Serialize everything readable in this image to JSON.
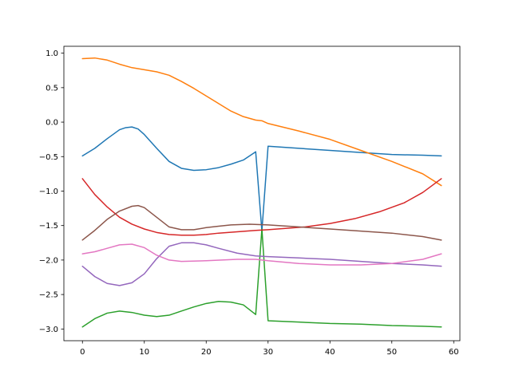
{
  "chart_data": {
    "type": "line",
    "title": "",
    "xlabel": "",
    "ylabel": "",
    "xlim": [
      -3,
      61
    ],
    "ylim": [
      -3.17,
      1.1
    ],
    "xticks": [
      0,
      10,
      20,
      30,
      40,
      50,
      60
    ],
    "yticks": [
      1.0,
      0.5,
      0.0,
      -0.5,
      -1.0,
      -1.5,
      -2.0,
      -2.5,
      -3.0
    ],
    "xtick_labels": [
      "0",
      "10",
      "20",
      "30",
      "40",
      "50",
      "60"
    ],
    "ytick_labels": [
      "1.0",
      "0.5",
      "0.0",
      "−0.5",
      "−1.0",
      "−1.5",
      "−2.0",
      "−2.5",
      "−3.0"
    ],
    "grid": false,
    "series": [
      {
        "color": "#1f77b4",
        "points": [
          [
            0,
            -0.49
          ],
          [
            2,
            -0.38
          ],
          [
            4,
            -0.24
          ],
          [
            6,
            -0.11
          ],
          [
            7,
            -0.08
          ],
          [
            8,
            -0.07
          ],
          [
            9,
            -0.1
          ],
          [
            10,
            -0.18
          ],
          [
            12,
            -0.38
          ],
          [
            14,
            -0.57
          ],
          [
            16,
            -0.67
          ],
          [
            18,
            -0.7
          ],
          [
            20,
            -0.69
          ],
          [
            22,
            -0.66
          ],
          [
            24,
            -0.61
          ],
          [
            26,
            -0.55
          ],
          [
            28,
            -0.43
          ],
          [
            29,
            -1.58
          ],
          [
            30,
            -0.35
          ],
          [
            35,
            -0.38
          ],
          [
            40,
            -0.41
          ],
          [
            45,
            -0.44
          ],
          [
            50,
            -0.47
          ],
          [
            55,
            -0.48
          ],
          [
            58,
            -0.49
          ]
        ]
      },
      {
        "color": "#ff7f0e",
        "points": [
          [
            0,
            0.92
          ],
          [
            2,
            0.93
          ],
          [
            4,
            0.9
          ],
          [
            6,
            0.84
          ],
          [
            8,
            0.79
          ],
          [
            10,
            0.76
          ],
          [
            12,
            0.73
          ],
          [
            14,
            0.68
          ],
          [
            16,
            0.59
          ],
          [
            18,
            0.49
          ],
          [
            20,
            0.38
          ],
          [
            22,
            0.27
          ],
          [
            24,
            0.16
          ],
          [
            26,
            0.08
          ],
          [
            28,
            0.03
          ],
          [
            29,
            0.02
          ],
          [
            30,
            -0.02
          ],
          [
            35,
            -0.13
          ],
          [
            40,
            -0.25
          ],
          [
            45,
            -0.41
          ],
          [
            50,
            -0.57
          ],
          [
            55,
            -0.75
          ],
          [
            58,
            -0.92
          ]
        ]
      },
      {
        "color": "#2ca02c",
        "points": [
          [
            0,
            -2.97
          ],
          [
            2,
            -2.85
          ],
          [
            4,
            -2.77
          ],
          [
            6,
            -2.74
          ],
          [
            8,
            -2.76
          ],
          [
            10,
            -2.8
          ],
          [
            12,
            -2.82
          ],
          [
            14,
            -2.8
          ],
          [
            16,
            -2.74
          ],
          [
            18,
            -2.68
          ],
          [
            20,
            -2.63
          ],
          [
            22,
            -2.6
          ],
          [
            24,
            -2.61
          ],
          [
            26,
            -2.65
          ],
          [
            28,
            -2.79
          ],
          [
            29,
            -1.55
          ],
          [
            30,
            -2.88
          ],
          [
            35,
            -2.9
          ],
          [
            40,
            -2.92
          ],
          [
            45,
            -2.93
          ],
          [
            50,
            -2.95
          ],
          [
            55,
            -2.96
          ],
          [
            58,
            -2.97
          ]
        ]
      },
      {
        "color": "#d62728",
        "points": [
          [
            0,
            -0.82
          ],
          [
            2,
            -1.05
          ],
          [
            4,
            -1.23
          ],
          [
            6,
            -1.38
          ],
          [
            8,
            -1.48
          ],
          [
            10,
            -1.55
          ],
          [
            12,
            -1.6
          ],
          [
            14,
            -1.63
          ],
          [
            16,
            -1.64
          ],
          [
            18,
            -1.64
          ],
          [
            20,
            -1.63
          ],
          [
            22,
            -1.61
          ],
          [
            25,
            -1.59
          ],
          [
            28,
            -1.57
          ],
          [
            30,
            -1.56
          ],
          [
            33,
            -1.54
          ],
          [
            36,
            -1.52
          ],
          [
            40,
            -1.47
          ],
          [
            44,
            -1.4
          ],
          [
            48,
            -1.3
          ],
          [
            52,
            -1.17
          ],
          [
            55,
            -1.02
          ],
          [
            58,
            -0.82
          ]
        ]
      },
      {
        "color": "#9467bd",
        "points": [
          [
            0,
            -2.09
          ],
          [
            2,
            -2.24
          ],
          [
            4,
            -2.34
          ],
          [
            6,
            -2.37
          ],
          [
            8,
            -2.33
          ],
          [
            10,
            -2.2
          ],
          [
            12,
            -1.98
          ],
          [
            14,
            -1.8
          ],
          [
            16,
            -1.75
          ],
          [
            18,
            -1.75
          ],
          [
            20,
            -1.78
          ],
          [
            22,
            -1.83
          ],
          [
            25,
            -1.9
          ],
          [
            28,
            -1.94
          ],
          [
            30,
            -1.95
          ],
          [
            35,
            -1.97
          ],
          [
            40,
            -1.99
          ],
          [
            45,
            -2.02
          ],
          [
            50,
            -2.05
          ],
          [
            55,
            -2.07
          ],
          [
            58,
            -2.09
          ]
        ]
      },
      {
        "color": "#8c564b",
        "points": [
          [
            0,
            -1.71
          ],
          [
            2,
            -1.57
          ],
          [
            4,
            -1.41
          ],
          [
            6,
            -1.29
          ],
          [
            8,
            -1.22
          ],
          [
            9,
            -1.21
          ],
          [
            10,
            -1.24
          ],
          [
            12,
            -1.38
          ],
          [
            14,
            -1.52
          ],
          [
            16,
            -1.56
          ],
          [
            18,
            -1.56
          ],
          [
            20,
            -1.53
          ],
          [
            22,
            -1.51
          ],
          [
            24,
            -1.49
          ],
          [
            27,
            -1.48
          ],
          [
            30,
            -1.49
          ],
          [
            35,
            -1.52
          ],
          [
            40,
            -1.55
          ],
          [
            45,
            -1.58
          ],
          [
            50,
            -1.61
          ],
          [
            55,
            -1.66
          ],
          [
            58,
            -1.71
          ]
        ]
      },
      {
        "color": "#e377c2",
        "points": [
          [
            0,
            -1.91
          ],
          [
            2,
            -1.88
          ],
          [
            4,
            -1.83
          ],
          [
            6,
            -1.78
          ],
          [
            8,
            -1.77
          ],
          [
            10,
            -1.82
          ],
          [
            12,
            -1.93
          ],
          [
            14,
            -2.0
          ],
          [
            16,
            -2.02
          ],
          [
            20,
            -2.01
          ],
          [
            25,
            -1.99
          ],
          [
            28,
            -1.99
          ],
          [
            30,
            -2.01
          ],
          [
            35,
            -2.05
          ],
          [
            40,
            -2.07
          ],
          [
            45,
            -2.07
          ],
          [
            50,
            -2.05
          ],
          [
            55,
            -1.99
          ],
          [
            58,
            -1.91
          ]
        ]
      }
    ]
  }
}
